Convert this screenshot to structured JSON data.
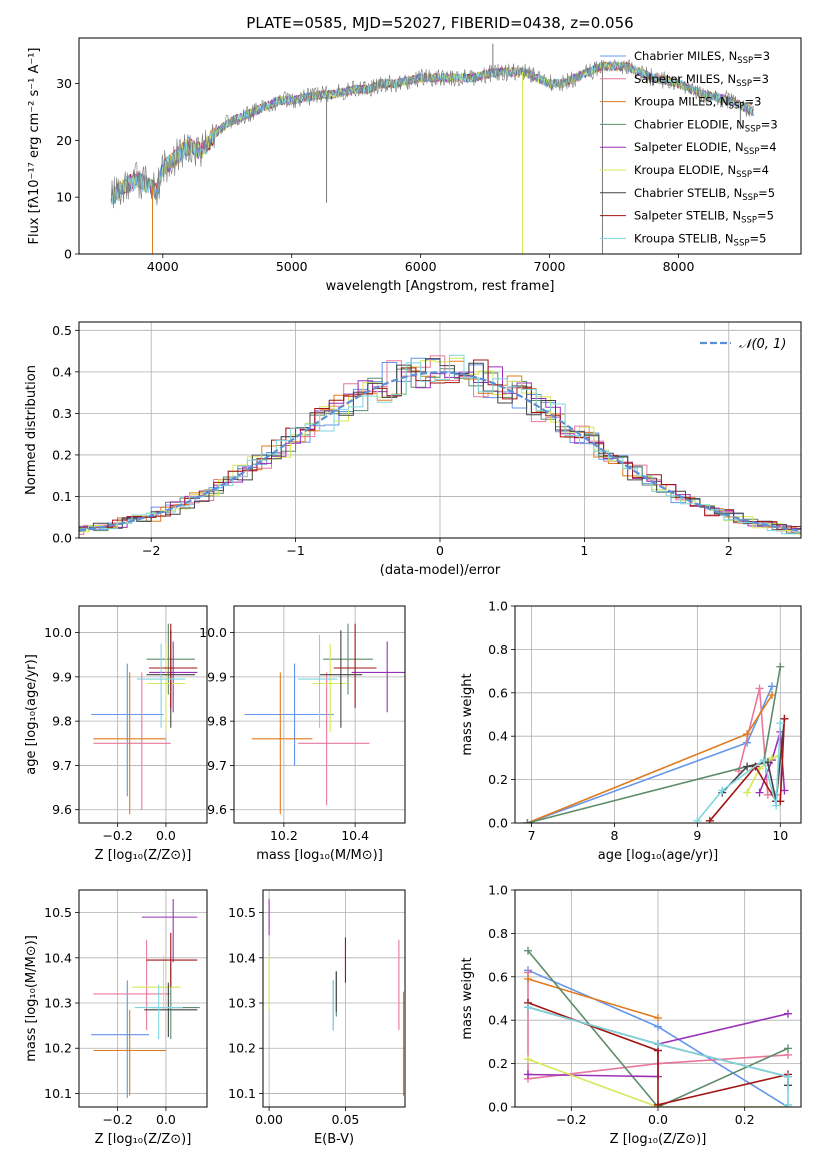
{
  "figure": {
    "title": "PLATE=0585, MJD=52027, FIBERID=0438, z=0.056"
  },
  "colors": {
    "models": [
      "#6495ed",
      "#e8789d",
      "#e07b1f",
      "#5e8c6a",
      "#9b30b8",
      "#d4e857",
      "#444444",
      "#a31515",
      "#7fd6e0"
    ],
    "gaussian": "#5b8fd6"
  },
  "chart_data": [
    {
      "id": "spectrum",
      "type": "line",
      "xlabel": "wavelength [Angstrom, rest frame]",
      "ylabel": "Flux [fλ10⁻¹⁷ erg cm⁻² s⁻¹ A⁻¹]",
      "xlim": [
        3350,
        8950
      ],
      "ylim": [
        0,
        38
      ],
      "xticks": [
        "4000",
        "5000",
        "6000",
        "7000",
        "8000"
      ],
      "yticks": [
        "0",
        "10",
        "20",
        "30"
      ],
      "grid": false,
      "legend_position": "top-right",
      "legend": [
        {
          "name": "Chabrier MILES, N",
          "sub": "SSP",
          "n": "=3"
        },
        {
          "name": "Salpeter MILES, N",
          "sub": "SSP",
          "n": "=3"
        },
        {
          "name": "Kroupa MILES, N",
          "sub": "SSP",
          "n": "=3"
        },
        {
          "name": "Chabrier ELODIE, N",
          "sub": "SSP",
          "n": "=3"
        },
        {
          "name": "Salpeter ELODIE, N",
          "sub": "SSP",
          "n": "=4"
        },
        {
          "name": "Kroupa ELODIE, N",
          "sub": "SSP",
          "n": "=4"
        },
        {
          "name": "Chabrier STELIB, N",
          "sub": "SSP",
          "n": "=5"
        },
        {
          "name": "Salpeter STELIB, N",
          "sub": "SSP",
          "n": "=5"
        },
        {
          "name": "Kroupa STELIB, N",
          "sub": "SSP",
          "n": "=5"
        }
      ],
      "continuum": [
        [
          3600,
          10
        ],
        [
          3700,
          12
        ],
        [
          3800,
          13
        ],
        [
          3900,
          12
        ],
        [
          3950,
          11
        ],
        [
          4000,
          15
        ],
        [
          4100,
          17
        ],
        [
          4200,
          19
        ],
        [
          4300,
          18
        ],
        [
          4400,
          21
        ],
        [
          4500,
          23
        ],
        [
          4600,
          24
        ],
        [
          4700,
          25
        ],
        [
          4800,
          26
        ],
        [
          4900,
          27
        ],
        [
          5000,
          27
        ],
        [
          5100,
          27.5
        ],
        [
          5200,
          28
        ],
        [
          5300,
          28
        ],
        [
          5400,
          28.5
        ],
        [
          5500,
          29
        ],
        [
          5600,
          29
        ],
        [
          5700,
          30
        ],
        [
          5800,
          30
        ],
        [
          5900,
          30.5
        ],
        [
          6000,
          31
        ],
        [
          6100,
          31
        ],
        [
          6200,
          31
        ],
        [
          6300,
          31
        ],
        [
          6400,
          31
        ],
        [
          6500,
          31.5
        ],
        [
          6600,
          32
        ],
        [
          6700,
          32
        ],
        [
          6800,
          32
        ],
        [
          6900,
          31
        ],
        [
          7000,
          30
        ],
        [
          7100,
          30
        ],
        [
          7200,
          31
        ],
        [
          7300,
          32
        ],
        [
          7400,
          33
        ],
        [
          7500,
          33
        ],
        [
          7600,
          33
        ],
        [
          7700,
          32
        ],
        [
          7800,
          31
        ],
        [
          7900,
          30.5
        ],
        [
          8000,
          30
        ],
        [
          8100,
          29
        ],
        [
          8200,
          28
        ],
        [
          8300,
          27.5
        ],
        [
          8400,
          27
        ],
        [
          8500,
          26
        ],
        [
          8580,
          25
        ]
      ],
      "spikes": [
        [
          3920,
          0
        ],
        [
          5270,
          9
        ],
        [
          6790,
          0
        ],
        [
          7410,
          0
        ],
        [
          6560,
          37
        ],
        [
          8480,
          22
        ]
      ]
    },
    {
      "id": "residuals",
      "type": "step",
      "xlabel": "(data-model)/error",
      "ylabel": "Normed distribution",
      "xlim": [
        -2.5,
        2.5
      ],
      "ylim": [
        0,
        0.52
      ],
      "xticks": [
        "−2",
        "−1",
        "0",
        "1",
        "2"
      ],
      "yticks": [
        "0.0",
        "0.1",
        "0.2",
        "0.3",
        "0.4",
        "0.5"
      ],
      "grid": true,
      "legend_position": "top-right",
      "legend_label": "𝒩(0, 1)",
      "bin_width": 0.1
    },
    {
      "id": "age_vs_Z",
      "type": "errorbar",
      "xlabel": "Z [log₁₀(Z/Z⊙)]",
      "ylabel": "age  [log₁₀(age/yr)]",
      "xlim": [
        -0.36,
        0.17
      ],
      "ylim": [
        9.57,
        10.06
      ],
      "xticks": [
        -0.2,
        0.0
      ],
      "xtick_labels": [
        "−0.2",
        "0.0"
      ],
      "yticks": [
        9.6,
        9.7,
        9.8,
        9.9,
        10.0
      ],
      "ytick_labels": [
        "9.6",
        "9.7",
        "9.8",
        "9.9",
        "10.0"
      ],
      "grid": true,
      "points": [
        {
          "x": -0.16,
          "y": 9.815,
          "xerr": [
            0.15,
            0.15
          ],
          "yerr": [
            0.185,
            0.115
          ]
        },
        {
          "x": -0.1,
          "y": 9.75,
          "xerr": [
            0.2,
            0.12
          ],
          "yerr": [
            0.15,
            0.16
          ]
        },
        {
          "x": -0.15,
          "y": 9.76,
          "xerr": [
            0.15,
            0.15
          ],
          "yerr": [
            0.17,
            0.15
          ]
        },
        {
          "x": 0.01,
          "y": 9.94,
          "xerr": [
            0.09,
            0.11
          ],
          "yerr": [
            0.08,
            0.08
          ]
        },
        {
          "x": 0.03,
          "y": 9.91,
          "xerr": [
            0.1,
            0.1
          ],
          "yerr": [
            0.09,
            0.07
          ]
        },
        {
          "x": 0.0,
          "y": 9.885,
          "xerr": [
            0.08,
            0.08
          ],
          "yerr": [
            0.11,
            0.09
          ]
        },
        {
          "x": 0.02,
          "y": 9.905,
          "xerr": [
            0.1,
            0.1
          ],
          "yerr": [
            0.12,
            0.1
          ]
        },
        {
          "x": 0.02,
          "y": 9.92,
          "xerr": [
            0.09,
            0.11
          ],
          "yerr": [
            0.09,
            0.1
          ]
        },
        {
          "x": -0.02,
          "y": 9.895,
          "xerr": [
            0.1,
            0.1
          ],
          "yerr": [
            0.11,
            0.08
          ]
        }
      ]
    },
    {
      "id": "age_vs_mass",
      "type": "errorbar",
      "xlabel": "mass [log₁₀(M/M⊙)]",
      "ylabel": "",
      "xlim": [
        10.06,
        10.54
      ],
      "ylim": [
        9.57,
        10.06
      ],
      "xticks": [
        10.2,
        10.4
      ],
      "xtick_labels": [
        "10.2",
        "10.4"
      ],
      "yticks": [
        9.6,
        9.7,
        9.8,
        9.9,
        10.0
      ],
      "ytick_labels": [
        "9.6",
        "9.7",
        "9.8",
        "9.9",
        "10.0"
      ],
      "grid": true,
      "points": [
        {
          "x": 10.23,
          "y": 9.815,
          "xerr": [
            0.14,
            0.11
          ],
          "yerr": [
            0.115,
            0.115
          ]
        },
        {
          "x": 10.32,
          "y": 9.75,
          "xerr": [
            0.08,
            0.12
          ],
          "yerr": [
            0.14,
            0.16
          ]
        },
        {
          "x": 10.19,
          "y": 9.76,
          "xerr": [
            0.08,
            0.09
          ],
          "yerr": [
            0.17,
            0.15
          ]
        },
        {
          "x": 10.38,
          "y": 9.94,
          "xerr": [
            0.07,
            0.07
          ],
          "yerr": [
            0.08,
            0.08
          ]
        },
        {
          "x": 10.49,
          "y": 9.91,
          "xerr": [
            0.1,
            0.05
          ],
          "yerr": [
            0.09,
            0.07
          ]
        },
        {
          "x": 10.33,
          "y": 9.885,
          "xerr": [
            0.05,
            0.05
          ],
          "yerr": [
            0.11,
            0.09
          ]
        },
        {
          "x": 10.36,
          "y": 9.905,
          "xerr": [
            0.06,
            0.06
          ],
          "yerr": [
            0.12,
            0.1
          ]
        },
        {
          "x": 10.4,
          "y": 9.92,
          "xerr": [
            0.06,
            0.06
          ],
          "yerr": [
            0.09,
            0.1
          ]
        },
        {
          "x": 10.3,
          "y": 9.895,
          "xerr": [
            0.06,
            0.05
          ],
          "yerr": [
            0.11,
            0.1
          ]
        }
      ]
    },
    {
      "id": "weight_vs_age",
      "type": "line",
      "xlabel": "age  [log₁₀(age/yr)]",
      "ylabel": "mass weight",
      "xlim": [
        6.8,
        10.25
      ],
      "ylim": [
        0,
        1
      ],
      "xticks": [
        7,
        8,
        9,
        10
      ],
      "xtick_labels": [
        "7",
        "8",
        "9",
        "10"
      ],
      "yticks": [
        0,
        0.2,
        0.4,
        0.6,
        0.8,
        1.0
      ],
      "ytick_labels": [
        "0.0",
        "0.2",
        "0.4",
        "0.6",
        "0.8",
        "1.0"
      ],
      "grid": true,
      "series": [
        {
          "x": [
            6.95,
            9.6,
            9.9
          ],
          "y": [
            0.0,
            0.37,
            0.63
          ]
        },
        {
          "x": [
            9.5,
            9.75,
            9.85,
            9.95
          ],
          "y": [
            0.24,
            0.62,
            0.13,
            0.13
          ]
        },
        {
          "x": [
            6.95,
            9.6,
            9.9
          ],
          "y": [
            0.0,
            0.41,
            0.59
          ]
        },
        {
          "x": [
            6.95,
            9.8,
            10.0
          ],
          "y": [
            0.0,
            0.28,
            0.72
          ]
        },
        {
          "x": [
            9.75,
            9.9,
            10.0,
            10.05
          ],
          "y": [
            0.14,
            0.29,
            0.42,
            0.15
          ]
        },
        {
          "x": [
            9.6,
            9.75,
            9.9,
            10.0
          ],
          "y": [
            0.14,
            0.25,
            0.3,
            0.31
          ]
        },
        {
          "x": [
            9.3,
            9.6,
            9.85,
            9.95,
            10.05
          ],
          "y": [
            0.14,
            0.26,
            0.28,
            0.1,
            0.48
          ]
        },
        {
          "x": [
            9.15,
            9.7,
            9.95,
            10.0,
            10.05
          ],
          "y": [
            0.01,
            0.26,
            0.1,
            0.1,
            0.48
          ]
        },
        {
          "x": [
            9.0,
            9.3,
            9.8,
            9.95,
            10.0
          ],
          "y": [
            0.01,
            0.15,
            0.29,
            0.08,
            0.46
          ]
        }
      ]
    },
    {
      "id": "mass_vs_Z",
      "type": "errorbar",
      "xlabel": "Z [log₁₀(Z/Z⊙)]",
      "ylabel": "mass [log₁₀(M/M⊙)]",
      "xlim": [
        -0.36,
        0.17
      ],
      "ylim": [
        10.07,
        10.55
      ],
      "xticks": [
        -0.2,
        0.0
      ],
      "xtick_labels": [
        "−0.2",
        "0.0"
      ],
      "yticks": [
        10.1,
        10.2,
        10.3,
        10.4,
        10.5
      ],
      "ytick_labels": [
        "10.1",
        "10.2",
        "10.3",
        "10.4",
        "10.5"
      ],
      "grid": true,
      "points": [
        {
          "x": -0.16,
          "y": 10.23,
          "xerr": [
            0.15,
            0.09
          ],
          "yerr": [
            0.14,
            0.12
          ]
        },
        {
          "x": -0.08,
          "y": 10.32,
          "xerr": [
            0.22,
            0.1
          ],
          "yerr": [
            0.08,
            0.12
          ]
        },
        {
          "x": -0.15,
          "y": 10.195,
          "xerr": [
            0.15,
            0.15
          ],
          "yerr": [
            0.1,
            0.09
          ]
        },
        {
          "x": 0.02,
          "y": 10.29,
          "xerr": [
            0.08,
            0.12
          ],
          "yerr": [
            0.07,
            0.1
          ]
        },
        {
          "x": 0.03,
          "y": 10.49,
          "xerr": [
            0.13,
            0.1
          ],
          "yerr": [
            0.1,
            0.04
          ]
        },
        {
          "x": -0.01,
          "y": 10.335,
          "xerr": [
            0.13,
            0.07
          ],
          "yerr": [
            0.05,
            0.07
          ]
        },
        {
          "x": 0.01,
          "y": 10.285,
          "xerr": [
            0.1,
            0.12
          ],
          "yerr": [
            0.06,
            0.06
          ]
        },
        {
          "x": 0.02,
          "y": 10.395,
          "xerr": [
            0.1,
            0.11
          ],
          "yerr": [
            0.06,
            0.06
          ]
        },
        {
          "x": -0.03,
          "y": 10.29,
          "xerr": [
            0.1,
            0.1
          ],
          "yerr": [
            0.07,
            0.05
          ]
        }
      ]
    },
    {
      "id": "mass_vs_EBV",
      "type": "errorbar",
      "xlabel": "E(B-V)",
      "ylabel": "",
      "xlim": [
        -0.004,
        0.089
      ],
      "ylim": [
        10.07,
        10.55
      ],
      "xticks": [
        0.0,
        0.05
      ],
      "xtick_labels": [
        "0.00",
        "0.05"
      ],
      "yticks": [
        10.1,
        10.2,
        10.3,
        10.4,
        10.5
      ],
      "ytick_labels": [
        "10.1",
        "10.2",
        "10.3",
        "10.4",
        "10.5"
      ],
      "grid": true,
      "points": [
        {
          "x": 0.042,
          "y": 10.3,
          "xerr": [
            0,
            0
          ],
          "yerr": [
            0.06,
            0.05
          ]
        },
        {
          "x": 0.085,
          "y": 10.32,
          "xerr": [
            0,
            0
          ],
          "yerr": [
            0.08,
            0.12
          ]
        },
        {
          "x": 0.088,
          "y": 10.195,
          "xerr": [
            0,
            0
          ],
          "yerr": [
            0.1,
            0.13
          ]
        },
        {
          "x": 0.044,
          "y": 10.32,
          "xerr": [
            0,
            0
          ],
          "yerr": [
            0.05,
            0.05
          ]
        },
        {
          "x": 0.0,
          "y": 10.49,
          "xerr": [
            0,
            0
          ],
          "yerr": [
            0.04,
            0.04
          ]
        },
        {
          "x": 0.0,
          "y": 10.335,
          "xerr": [
            0,
            0
          ],
          "yerr": [
            0.05,
            0.07
          ]
        },
        {
          "x": 0.044,
          "y": 10.32,
          "xerr": [
            0,
            0
          ],
          "yerr": [
            0.04,
            0.05
          ]
        },
        {
          "x": 0.05,
          "y": 10.395,
          "xerr": [
            0,
            0
          ],
          "yerr": [
            0.05,
            0.05
          ]
        },
        {
          "x": 0.042,
          "y": 10.29,
          "xerr": [
            0,
            0
          ],
          "yerr": [
            0.05,
            0.06
          ]
        }
      ]
    },
    {
      "id": "weight_vs_Z",
      "type": "line",
      "xlabel": "Z [log₁₀(Z/Z⊙)]",
      "ylabel": "mass weight",
      "xlim": [
        -0.33,
        0.33
      ],
      "ylim": [
        0,
        1
      ],
      "xticks": [
        -0.2,
        0.0,
        0.2
      ],
      "xtick_labels": [
        "−0.2",
        "0.0",
        "0.2"
      ],
      "yticks": [
        0,
        0.2,
        0.4,
        0.6,
        0.8,
        1.0
      ],
      "ytick_labels": [
        "0.0",
        "0.2",
        "0.4",
        "0.6",
        "0.8",
        "1.0"
      ],
      "grid": true,
      "series": [
        {
          "x": [
            -0.3,
            0.0,
            0.3
          ],
          "y": [
            0.63,
            0.37,
            0.0
          ]
        },
        {
          "x": [
            -0.3,
            -0.3,
            0.0,
            0.3
          ],
          "y": [
            0.62,
            0.13,
            0.2,
            0.24
          ]
        },
        {
          "x": [
            -0.3,
            0.0
          ],
          "y": [
            0.59,
            0.41
          ]
        },
        {
          "x": [
            -0.3,
            0.0,
            0.3
          ],
          "y": [
            0.72,
            0.0,
            0.27
          ]
        },
        {
          "x": [
            -0.3,
            0.0,
            0.0,
            0.3
          ],
          "y": [
            0.15,
            0.14,
            0.29,
            0.43
          ]
        },
        {
          "x": [
            -0.3,
            0.0,
            0.3
          ],
          "y": [
            0.22,
            0.0,
            0.0
          ]
        },
        {
          "x": [
            -0.3,
            0.0,
            0.3,
            0.3
          ],
          "y": [
            0.46,
            0.29,
            0.14,
            0.1
          ]
        },
        {
          "x": [
            -0.3,
            0.0,
            0.0,
            0.3
          ],
          "y": [
            0.48,
            0.26,
            0.01,
            0.15
          ]
        },
        {
          "x": [
            -0.3,
            0.0,
            0.3,
            0.3
          ],
          "y": [
            0.46,
            0.29,
            0.14,
            0.01
          ]
        }
      ]
    }
  ]
}
